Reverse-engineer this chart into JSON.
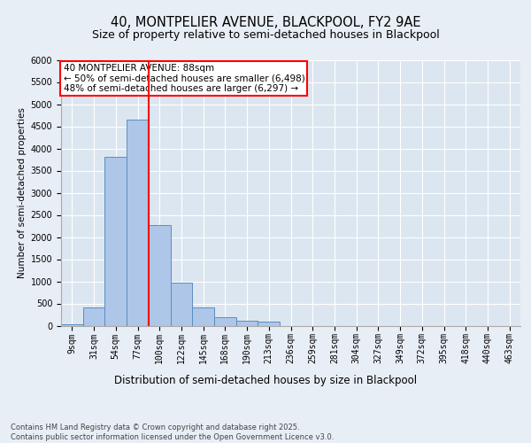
{
  "title1": "40, MONTPELIER AVENUE, BLACKPOOL, FY2 9AE",
  "title2": "Size of property relative to semi-detached houses in Blackpool",
  "xlabel": "Distribution of semi-detached houses by size in Blackpool",
  "ylabel": "Number of semi-detached properties",
  "categories": [
    "9sqm",
    "31sqm",
    "54sqm",
    "77sqm",
    "100sqm",
    "122sqm",
    "145sqm",
    "168sqm",
    "190sqm",
    "213sqm",
    "236sqm",
    "259sqm",
    "281sqm",
    "304sqm",
    "327sqm",
    "349sqm",
    "372sqm",
    "395sqm",
    "418sqm",
    "440sqm",
    "463sqm"
  ],
  "values": [
    30,
    410,
    3820,
    4660,
    2270,
    980,
    410,
    200,
    110,
    90,
    0,
    0,
    0,
    0,
    0,
    0,
    0,
    0,
    0,
    0,
    0
  ],
  "bar_color": "#aec6e8",
  "bar_edge_color": "#5b8dc0",
  "vline_color": "red",
  "vline_xindex": 3.5,
  "annotation_title": "40 MONTPELIER AVENUE: 88sqm",
  "annotation_line1": "← 50% of semi-detached houses are smaller (6,498)",
  "annotation_line2": "48% of semi-detached houses are larger (6,297) →",
  "ylim": [
    0,
    6000
  ],
  "yticks": [
    0,
    500,
    1000,
    1500,
    2000,
    2500,
    3000,
    3500,
    4000,
    4500,
    5000,
    5500,
    6000
  ],
  "background_color": "#e8eef5",
  "plot_bg_color": "#dce6f0",
  "footer": "Contains HM Land Registry data © Crown copyright and database right 2025.\nContains public sector information licensed under the Open Government Licence v3.0.",
  "title1_fontsize": 10.5,
  "title2_fontsize": 9,
  "xlabel_fontsize": 8.5,
  "ylabel_fontsize": 7.5,
  "tick_fontsize": 7,
  "annotation_fontsize": 7.5,
  "footer_fontsize": 6
}
